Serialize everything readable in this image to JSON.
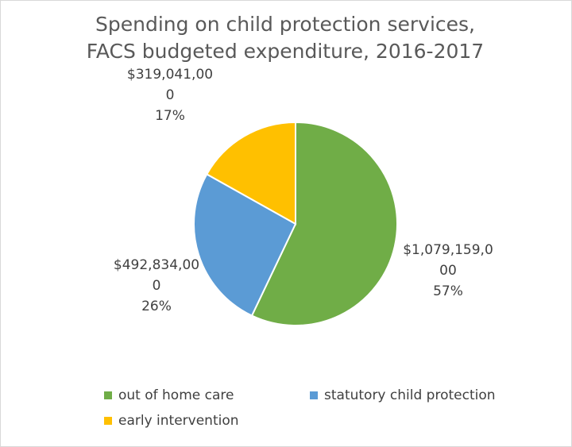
{
  "chart_data": {
    "type": "pie",
    "title_lines": [
      "Spending on child protection services,",
      "FACS budgeted expenditure, 2016-2017"
    ],
    "series": [
      {
        "name": "out of home care",
        "value": 1079159000,
        "percent": 57,
        "color": "#70ad47",
        "label_lines": [
          "$1,079,159,0",
          "00",
          "57%"
        ]
      },
      {
        "name": "statutory child protection",
        "value": 492834000,
        "percent": 26,
        "color": "#5b9bd5",
        "label_lines": [
          "$492,834,00",
          "0",
          "26%"
        ]
      },
      {
        "name": "early intervention",
        "value": 319041000,
        "percent": 17,
        "color": "#ffc000",
        "label_lines": [
          "$319,041,00",
          "0",
          "17%"
        ]
      }
    ],
    "legend_position": "bottom"
  }
}
